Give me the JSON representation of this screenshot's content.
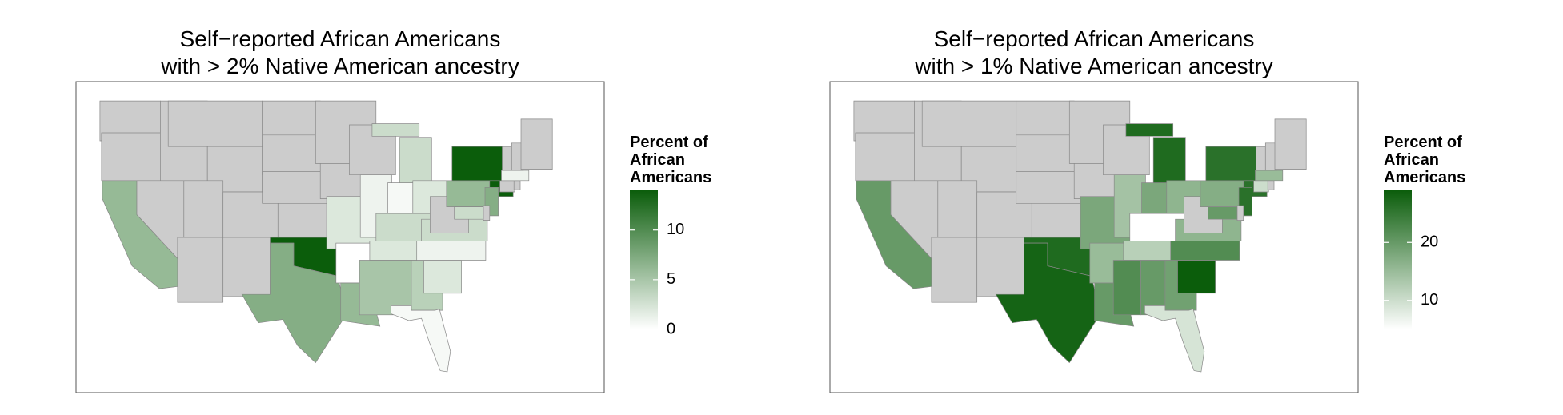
{
  "chart_data": [
    {
      "type": "choropleth",
      "title_lines": [
        "Self−reported African Americans",
        "with > 2% Native American ancestry"
      ],
      "legend_title_lines": [
        "Percent of",
        "African",
        "Americans"
      ],
      "scale_range": [
        0,
        14
      ],
      "ticks": [
        0,
        5,
        10
      ],
      "color_low": "#ffffff",
      "color_high": "#0b5d0b",
      "missing_color": "#cccccc",
      "values": [
        null,
        null,
        6,
        null,
        null,
        null,
        null,
        null,
        null,
        null,
        null,
        null,
        null,
        null,
        null,
        14,
        7,
        null,
        null,
        2,
        0,
        6,
        null,
        1,
        3,
        0.5,
        2,
        3,
        2,
        5,
        5,
        4,
        0.5,
        2,
        1,
        3,
        null,
        6,
        14,
        7,
        3,
        null,
        null,
        null,
        1,
        null,
        null,
        null
      ]
    },
    {
      "type": "choropleth",
      "title_lines": [
        "Self−reported African Americans",
        "with > 1% Native American ancestry"
      ],
      "legend_title_lines": [
        "Percent of",
        "African",
        "Americans"
      ],
      "scale_range": [
        5,
        29
      ],
      "ticks": [
        10,
        20
      ],
      "color_low": "#ffffff",
      "color_high": "#0b5d0b",
      "missing_color": "#cccccc",
      "values": [
        null,
        null,
        20,
        null,
        null,
        null,
        null,
        null,
        null,
        null,
        null,
        null,
        null,
        null,
        null,
        27,
        28,
        null,
        null,
        18,
        15,
        20,
        null,
        14,
        27,
        18,
        16,
        5,
        12,
        22,
        20,
        19,
        9,
        29,
        22,
        16,
        null,
        17,
        26,
        26,
        20,
        null,
        10,
        null,
        15,
        null,
        null,
        null
      ]
    }
  ]
}
